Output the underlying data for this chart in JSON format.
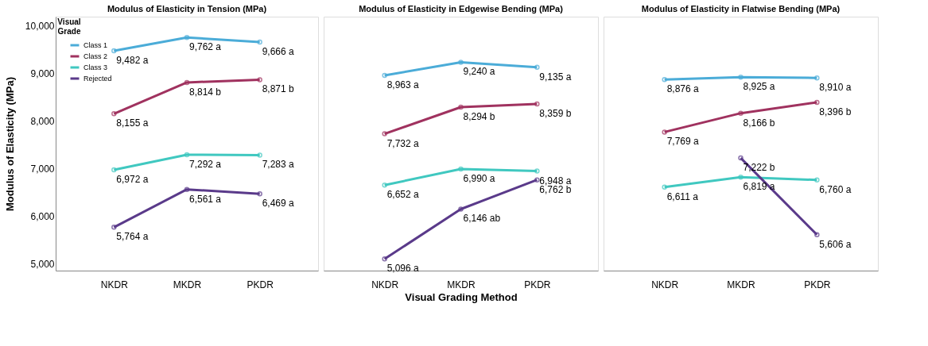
{
  "chart_data": [
    {
      "type": "line",
      "title": "Modulus of Elasticity in Tension (MPa)",
      "ylabel": "Modulus of Elasticity (MPa)",
      "legend_title": "Visual Grade",
      "legend": "top left",
      "marker": "circle",
      "line_style": "solid",
      "grid": false,
      "categories": [
        "NKDR",
        "MKDR",
        "PKDR"
      ],
      "ylim": [
        4850,
        10200
      ],
      "yticks": [
        {
          "value": 5000,
          "label": "5,000"
        },
        {
          "value": 6000,
          "label": "6,000"
        },
        {
          "value": 7000,
          "label": "7,000"
        },
        {
          "value": 8000,
          "label": "8,000"
        },
        {
          "value": 9000,
          "label": "9,000"
        },
        {
          "value": 10000,
          "label": "10,000"
        }
      ],
      "series": [
        {
          "name": "Class 1",
          "color": "#4bacd8",
          "values": [
            9482,
            9762,
            9666
          ],
          "value_labels": [
            "9,482 a",
            "9,762 a",
            "9,666 a"
          ]
        },
        {
          "name": "Class 2",
          "color": "#a0325f",
          "values": [
            8155,
            8814,
            8871
          ],
          "value_labels": [
            "8,155 a",
            "8,814 b",
            "8,871 b"
          ]
        },
        {
          "name": "Class 3",
          "color": "#40c8c0",
          "values": [
            6972,
            7292,
            7283
          ],
          "value_labels": [
            "6,972 a",
            "7,292 a",
            "7,283 a"
          ]
        },
        {
          "name": "Rejected",
          "color": "#5a3a8a",
          "values": [
            5764,
            6561,
            6469
          ],
          "value_labels": [
            "5,764 a",
            "6,561 a",
            "6,469 a"
          ]
        }
      ]
    },
    {
      "type": "line",
      "title": "Modulus of Elasticity in Edgewise Bending (MPa)",
      "xlabel": "Visual Grading Method",
      "marker": "circle",
      "line_style": "solid",
      "grid": false,
      "tick_labels": "x",
      "categories": [
        "NKDR",
        "MKDR",
        "PKDR"
      ],
      "ylim": [
        4850,
        10200
      ],
      "series": [
        {
          "color": "#4bacd8",
          "values": [
            8963,
            9240,
            9135
          ],
          "value_labels": [
            "8,963 a",
            "9,240 a",
            "9,135 a"
          ]
        },
        {
          "color": "#a0325f",
          "values": [
            7732,
            8294,
            8359
          ],
          "value_labels": [
            "7,732 a",
            "8,294 b",
            "8,359 b"
          ]
        },
        {
          "color": "#40c8c0",
          "values": [
            6652,
            6990,
            6948
          ],
          "value_labels": [
            "6,652 a",
            "6,990 a",
            "6,948 a"
          ]
        },
        {
          "color": "#5a3a8a",
          "values": [
            5096,
            6146,
            6762
          ],
          "value_labels": [
            "5,096 a",
            "6,146 ab",
            "6,762 b"
          ]
        }
      ]
    },
    {
      "type": "line",
      "title": "Modulus of Elasticity in Flatwise Bending (MPa)",
      "marker": "circle",
      "line_style": "solid",
      "grid": false,
      "tick_labels": "x",
      "categories": [
        "NKDR",
        "MKDR",
        "PKDR"
      ],
      "ylim": [
        4850,
        10200
      ],
      "series": [
        {
          "color": "#4bacd8",
          "values": [
            8876,
            8925,
            8910
          ],
          "value_labels": [
            "8,876 a",
            "8,925 a",
            "8,910 a"
          ]
        },
        {
          "color": "#a0325f",
          "values": [
            7769,
            8166,
            8396
          ],
          "value_labels": [
            "7,769 a",
            "8,166 b",
            "8,396 b"
          ]
        },
        {
          "color": "#40c8c0",
          "values": [
            6611,
            6819,
            6760
          ],
          "value_labels": [
            "6,611 a",
            "6,819 a",
            "6,760 a"
          ]
        },
        {
          "color": "#5a3a8a",
          "values": [
            null,
            7222,
            5606
          ],
          "value_labels": [
            null,
            "7,222 b",
            "5,606 a"
          ]
        }
      ]
    }
  ]
}
